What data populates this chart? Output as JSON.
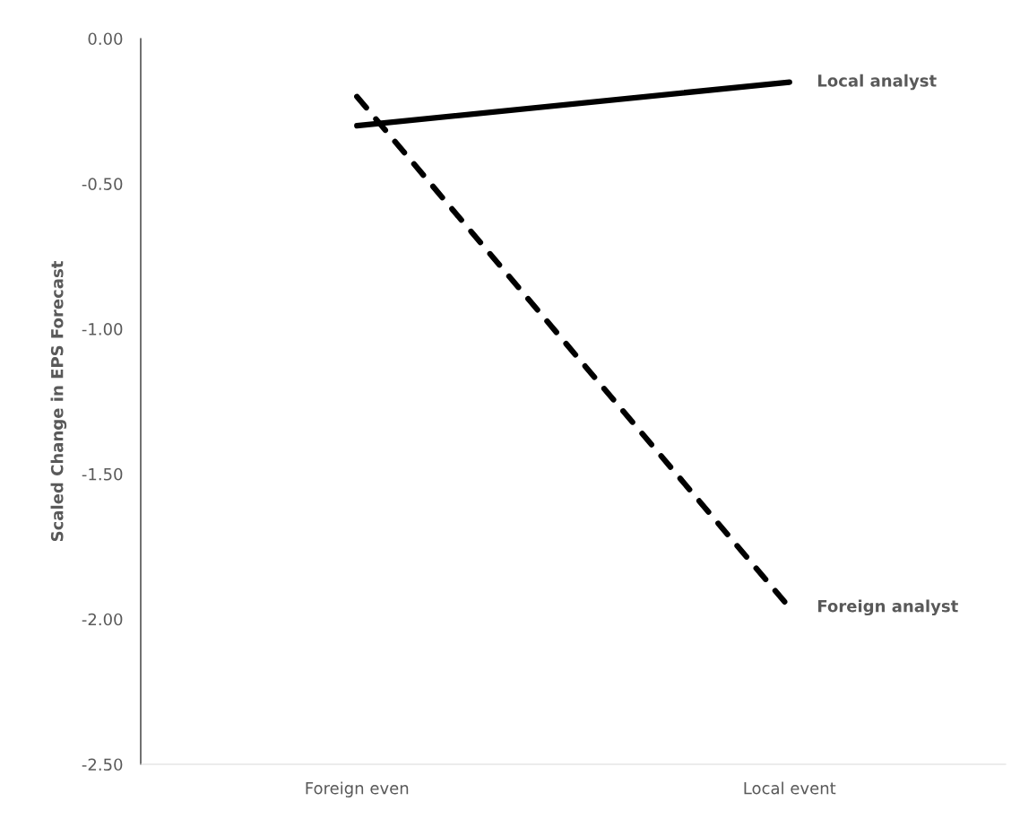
{
  "chart_data": {
    "type": "line",
    "ylabel": "Scaled Change in EPS Forecast",
    "categories": [
      "Foreign even",
      "Local event"
    ],
    "series": [
      {
        "name": "Local analyst",
        "color": "#000000",
        "line_style": "solid",
        "values": [
          -0.3,
          -0.15
        ]
      },
      {
        "name": "Foreign analyst",
        "color": "#000000",
        "line_style": "dashed",
        "values": [
          -0.2,
          -1.96
        ]
      }
    ],
    "ylim": [
      -2.5,
      0
    ],
    "yticks": [
      {
        "value": 0,
        "label": "0.00"
      },
      {
        "value": -0.5,
        "label": "-0.50"
      },
      {
        "value": -1,
        "label": "-1.00"
      },
      {
        "value": -1.5,
        "label": "-1.50"
      },
      {
        "value": -2,
        "label": "-2.00"
      },
      {
        "value": -2.5,
        "label": "-2.50"
      }
    ],
    "grid": false,
    "legend": false,
    "marker": "none"
  }
}
